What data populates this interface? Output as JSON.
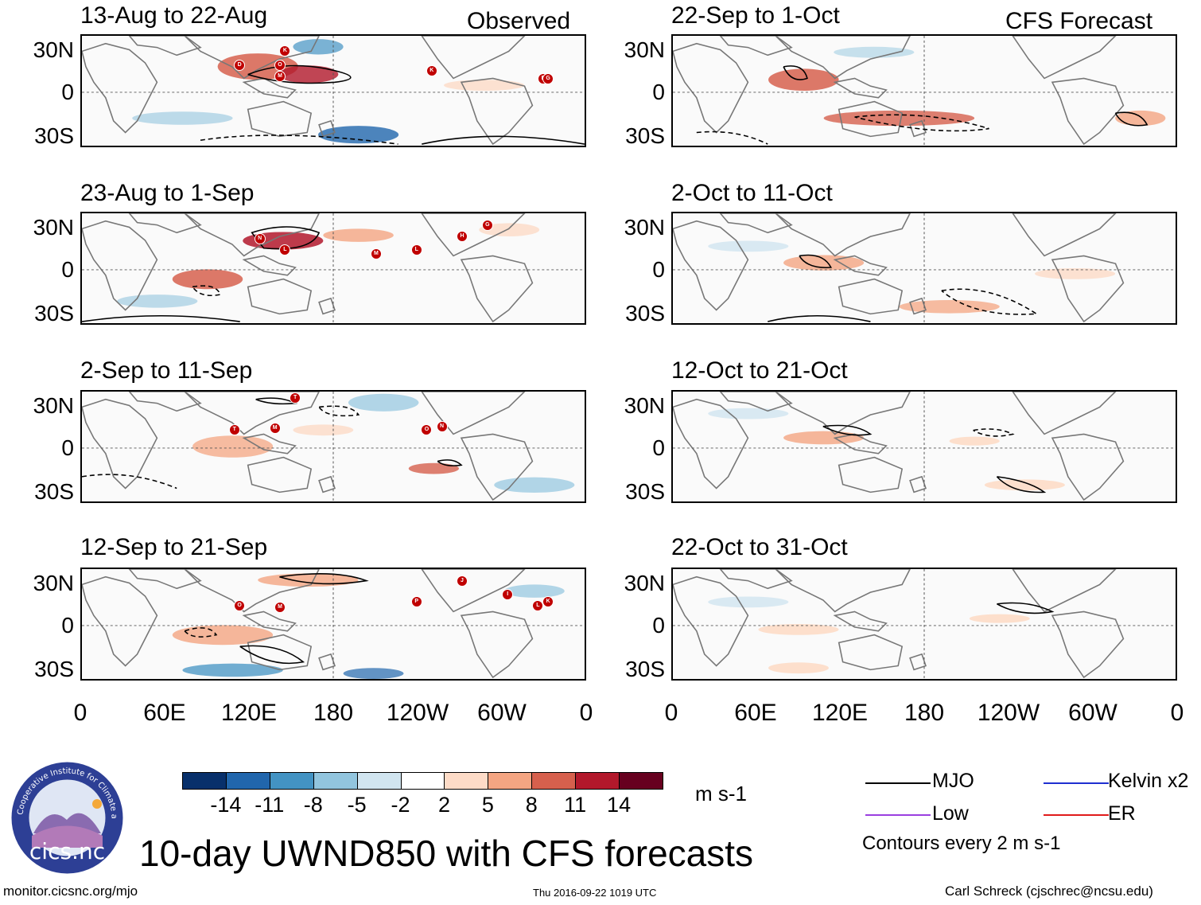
{
  "header": {
    "observed_label": "Observed",
    "forecast_label": "CFS Forecast"
  },
  "panels": {
    "observed": [
      {
        "title": "13-Aug to 22-Aug"
      },
      {
        "title": "23-Aug to 1-Sep"
      },
      {
        "title": "2-Sep to 11-Sep"
      },
      {
        "title": "12-Sep to 21-Sep"
      }
    ],
    "forecast": [
      {
        "title": "22-Sep to 1-Oct"
      },
      {
        "title": "2-Oct to 11-Oct"
      },
      {
        "title": "12-Oct to 21-Oct"
      },
      {
        "title": "22-Oct to 31-Oct"
      }
    ]
  },
  "axes": {
    "lat_labels": [
      "30N",
      "0",
      "30S"
    ],
    "lon_labels": [
      "0",
      "60E",
      "120E",
      "180",
      "120W",
      "60W",
      "0"
    ]
  },
  "colorbar": {
    "colors": [
      "#08306b",
      "#2166ac",
      "#4393c3",
      "#92c5de",
      "#d1e5f0",
      "#ffffff",
      "#fddbc7",
      "#f4a582",
      "#d6604d",
      "#b2182b",
      "#67001f"
    ],
    "ticks": [
      "-14",
      "-11",
      "-8",
      "-5",
      "-2",
      "2",
      "5",
      "8",
      "11",
      "14"
    ],
    "units": "m s-1"
  },
  "title": "10-day UWND850 with CFS forecasts",
  "legend": {
    "items": [
      {
        "label": "MJO",
        "color": "#000000"
      },
      {
        "label": "Kelvin x2",
        "color": "#1f2fd0"
      },
      {
        "label": "Low",
        "color": "#9b3fe0"
      },
      {
        "label": "ER",
        "color": "#e01b1b"
      }
    ],
    "note": "Contours every 2 m s-1"
  },
  "footer": {
    "left": "monitor.cicsnc.org/mjo",
    "center": "Thu 2016-09-22 1019 UTC",
    "right": "Carl Schreck (cjschrec@ncsu.edu)"
  },
  "logo": {
    "text": "cics.nc",
    "ring_text": "Cooperative Institute for Climate and Satellites"
  }
}
